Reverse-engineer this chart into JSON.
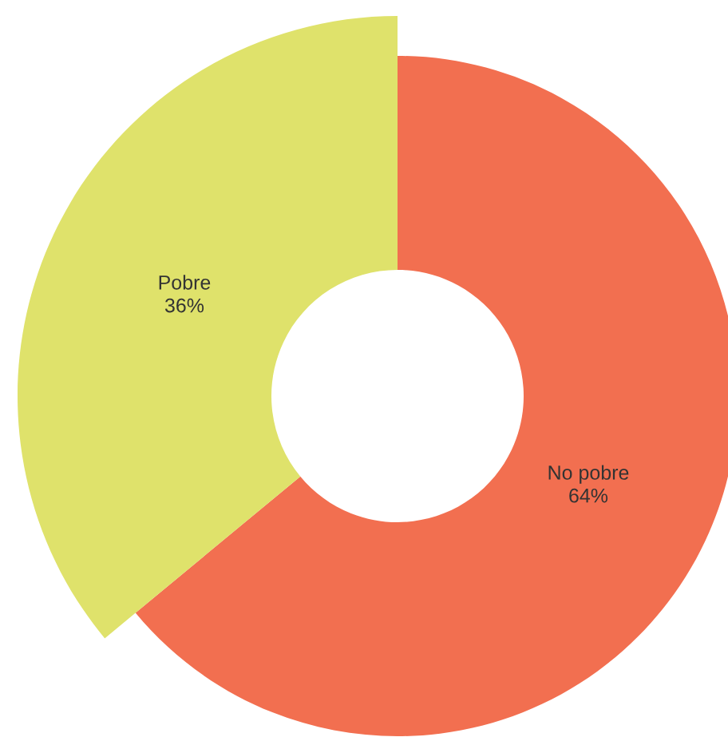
{
  "chart_data": {
    "type": "donut",
    "categories": [
      "No pobre",
      "Pobre"
    ],
    "values": [
      64,
      36
    ],
    "colors": [
      "#f26f50",
      "#dfe26b"
    ],
    "value_labels": [
      "64%",
      "36%"
    ],
    "legend": false
  }
}
